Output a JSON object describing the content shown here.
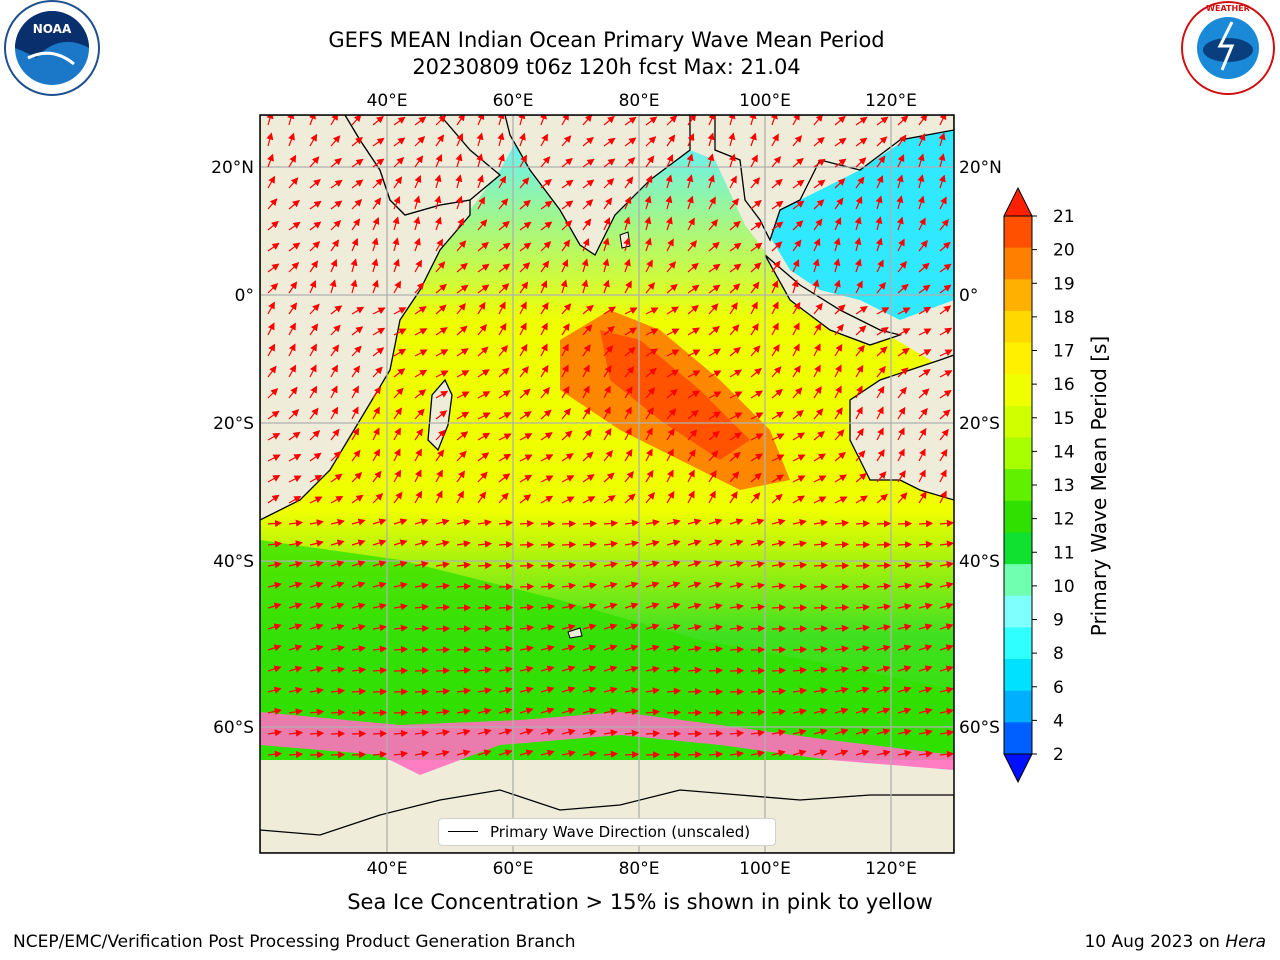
{
  "title_line1": "GEFS MEAN Indian Ocean Primary Wave Mean Period",
  "title_line2": "20230809 t06z 120h fcst   Max: 21.04",
  "logos": {
    "left": "noaa-logo",
    "right": "nws-logo"
  },
  "map": {
    "lon_ticks_top": [
      "40°E",
      "60°E",
      "80°E",
      "100°E",
      "120°E"
    ],
    "lon_ticks_bottom": [
      "40°E",
      "60°E",
      "80°E",
      "100°E",
      "120°E"
    ],
    "lat_ticks_left": [
      "20°N",
      "0°",
      "20°S",
      "40°S",
      "60°S"
    ],
    "lat_ticks_right": [
      "20°N",
      "0°",
      "20°S",
      "40°S",
      "60°S"
    ],
    "legend_label": "Primary Wave Direction (unscaled)",
    "arrow_color": "#ff0000",
    "land_color": "#efedda"
  },
  "colorbar": {
    "label": "Primary Wave Mean Period [s]",
    "ticks": [
      "21",
      "20",
      "19",
      "18",
      "17",
      "16",
      "15",
      "14",
      "13",
      "12",
      "11",
      "10",
      "9",
      "8",
      "6",
      "4",
      "2"
    ],
    "colors": [
      "#ff2000",
      "#ff5000",
      "#ff8000",
      "#ffb000",
      "#ffd800",
      "#fff000",
      "#f0ff00",
      "#d0ff00",
      "#a8ff00",
      "#60f000",
      "#30e000",
      "#10e030",
      "#70ffb0",
      "#80ffff",
      "#30ffff",
      "#00e0ff",
      "#00b0ff",
      "#0060ff",
      "#0010ff"
    ]
  },
  "caption": "Sea Ice Concentration > 15% is shown in pink to yellow",
  "credit": "NCEP/EMC/Verification Post Processing Product Generation Branch",
  "date_text": "10 Aug 2023 on",
  "date_machine": "Hera"
}
